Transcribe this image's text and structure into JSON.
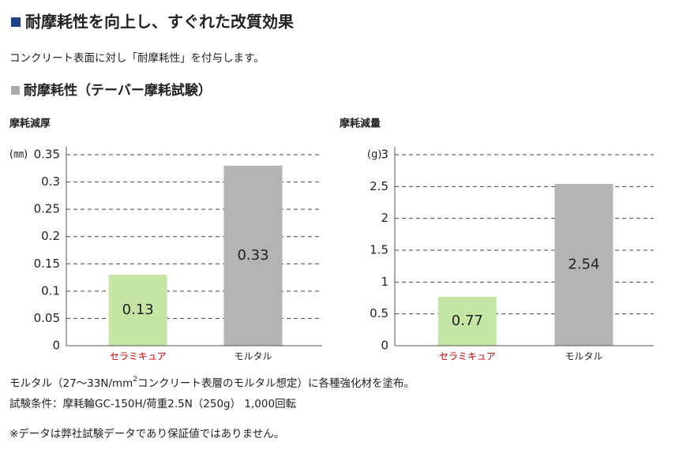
{
  "header": {
    "title": "耐摩耗性を向上し、すぐれた改質効果",
    "intro": "コンクリート表面に対し「耐摩耗性」を付与します。",
    "subheading": "耐摩耗性（テーバー摩耗試験）"
  },
  "chart_data": [
    {
      "type": "bar",
      "title": "摩耗減厚",
      "ylabel": "(㎜)",
      "categories": [
        "セラミキュア",
        "モルタル"
      ],
      "values": [
        0.13,
        0.33
      ],
      "colors": [
        "#c5e5a5",
        "#b4b4b4"
      ],
      "category_colors": [
        "#cc0000",
        "#222222"
      ],
      "ylim": [
        0,
        0.35
      ],
      "yticks": [
        0,
        0.05,
        0.1,
        0.15,
        0.2,
        0.25,
        0.3,
        0.35
      ],
      "grid": true
    },
    {
      "type": "bar",
      "title": "摩耗減量",
      "ylabel": "(g)",
      "categories": [
        "セラミキュア",
        "モルタル"
      ],
      "values": [
        0.77,
        2.54
      ],
      "colors": [
        "#c5e5a5",
        "#b4b4b4"
      ],
      "category_colors": [
        "#cc0000",
        "#222222"
      ],
      "ylim": [
        0,
        3
      ],
      "yticks": [
        0,
        0.5,
        1,
        1.5,
        2,
        2.5,
        3
      ],
      "grid": true
    }
  ],
  "notes": {
    "line1_before": "モルタル（27～33N/mm",
    "line1_sup": "2",
    "line1_after": "コンクリート表層のモルタル想定）に各種強化材を塗布。",
    "line2": "試験条件：摩耗輪GC-150H/荷重2.5N（250g） 1,000回転",
    "line3": "※データは弊社試験データであり保証値ではありません。"
  }
}
